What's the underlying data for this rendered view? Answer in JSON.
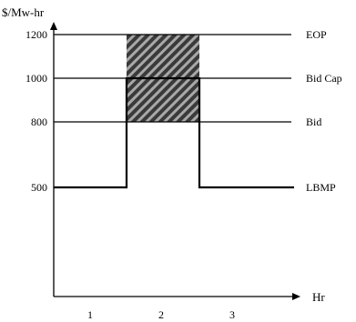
{
  "chart_data": {
    "type": "line",
    "title": "",
    "ylabel": "$/Mw-hr",
    "xlabel": "Hr",
    "x_ticks": [
      "1",
      "2",
      "3"
    ],
    "y_ticks": [
      {
        "value": 500,
        "label": "500"
      },
      {
        "value": 800,
        "label": "800"
      },
      {
        "value": 1000,
        "label": "1000"
      },
      {
        "value": 1200,
        "label": "1200"
      }
    ],
    "xlim": [
      0.5,
      3.8
    ],
    "ylim": [
      0,
      1250
    ],
    "grid": false,
    "reference_lines": [
      {
        "y": 1200,
        "label": "EOP"
      },
      {
        "y": 1000,
        "label": "Bid Cap"
      },
      {
        "y": 800,
        "label": "Bid"
      }
    ],
    "series": [
      {
        "name": "LBMP",
        "x": [
          0.5,
          1.5,
          1.5,
          2.5,
          2.5,
          3.8
        ],
        "y": [
          500,
          500,
          1000,
          1000,
          500,
          500
        ]
      }
    ],
    "shaded_region": {
      "x": [
        1.5,
        2.5
      ],
      "y": [
        800,
        1200
      ],
      "pattern": "diagonal-hatch"
    },
    "colors": {
      "line": "#000000",
      "hatch_dark": "#3a3a3a",
      "hatch_light": "#a8a8a8"
    }
  }
}
